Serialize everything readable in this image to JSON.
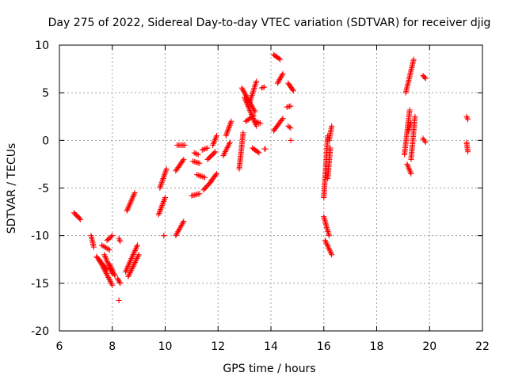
{
  "chart_data": {
    "type": "scatter",
    "title": "Day 275 of 2022, Sidereal Day-to-day VTEC variation (SDTVAR) for receiver djig",
    "xlabel": "GPS time / hours",
    "ylabel": "SDTVAR / TECUs",
    "xlim": [
      6,
      22
    ],
    "ylim": [
      -20,
      10
    ],
    "xticks": [
      "6",
      "8",
      "10",
      "12",
      "14",
      "16",
      "18",
      "20",
      "22"
    ],
    "yticks": [
      "-20",
      "-15",
      "-10",
      "-5",
      "0",
      "5",
      "10"
    ],
    "grid": true,
    "marker": "plus",
    "color": "#ff0000",
    "segments": [
      {
        "x": [
          6.55,
          6.8
        ],
        "y": [
          -7.6,
          -8.3
        ]
      },
      {
        "x": [
          7.2,
          7.3
        ],
        "y": [
          -10.0,
          -11.2
        ]
      },
      {
        "x": [
          7.4,
          7.8
        ],
        "y": [
          -12.2,
          -13.6
        ]
      },
      {
        "x": [
          7.5,
          8.0
        ],
        "y": [
          -12.5,
          -15.2
        ]
      },
      {
        "x": [
          7.6,
          7.9
        ],
        "y": [
          -11.0,
          -11.5
        ]
      },
      {
        "x": [
          7.7,
          8.0
        ],
        "y": [
          -12.0,
          -14.0
        ]
      },
      {
        "x": [
          7.8,
          8.0
        ],
        "y": [
          -10.5,
          -10.0
        ]
      },
      {
        "x": [
          7.9,
          8.1
        ],
        "y": [
          -13.0,
          -14.2
        ]
      },
      {
        "x": [
          8.25,
          8.3
        ],
        "y": [
          -10.3,
          -10.6
        ]
      },
      {
        "x": [
          8.2,
          8.3
        ],
        "y": [
          -14.5,
          -15.0
        ]
      },
      {
        "x": [
          8.25,
          8.25
        ],
        "y": [
          -16.8,
          -16.8
        ]
      },
      {
        "x": [
          8.5,
          8.95
        ],
        "y": [
          -13.8,
          -11.0
        ]
      },
      {
        "x": [
          8.6,
          9.0
        ],
        "y": [
          -14.3,
          -12.0
        ]
      },
      {
        "x": [
          8.55,
          8.85
        ],
        "y": [
          -7.4,
          -5.5
        ]
      },
      {
        "x": [
          9.75,
          10.0
        ],
        "y": [
          -7.8,
          -6.0
        ]
      },
      {
        "x": [
          9.8,
          10.05
        ],
        "y": [
          -5.0,
          -3.0
        ]
      },
      {
        "x": [
          9.95,
          9.95
        ],
        "y": [
          -10.0,
          -10.0
        ]
      },
      {
        "x": [
          10.4,
          10.7
        ],
        "y": [
          -10.0,
          -8.5
        ]
      },
      {
        "x": [
          10.4,
          10.7
        ],
        "y": [
          -3.2,
          -2.0
        ]
      },
      {
        "x": [
          10.45,
          10.75
        ],
        "y": [
          -0.5,
          -0.5
        ]
      },
      {
        "x": [
          11.0,
          11.3
        ],
        "y": [
          -5.8,
          -5.6
        ]
      },
      {
        "x": [
          11.1,
          11.25
        ],
        "y": [
          -1.3,
          -1.5
        ]
      },
      {
        "x": [
          11.05,
          11.3
        ],
        "y": [
          -2.2,
          -2.4
        ]
      },
      {
        "x": [
          11.2,
          11.5
        ],
        "y": [
          -3.6,
          -3.9
        ]
      },
      {
        "x": [
          11.45,
          11.75
        ],
        "y": [
          -5.2,
          -4.3
        ]
      },
      {
        "x": [
          11.4,
          11.6
        ],
        "y": [
          -1.0,
          -0.8
        ]
      },
      {
        "x": [
          11.6,
          11.9
        ],
        "y": [
          -2.0,
          -1.2
        ]
      },
      {
        "x": [
          11.75,
          11.95
        ],
        "y": [
          -4.2,
          -3.5
        ]
      },
      {
        "x": [
          11.8,
          11.95
        ],
        "y": [
          -0.5,
          0.5
        ]
      },
      {
        "x": [
          12.2,
          12.45
        ],
        "y": [
          -1.6,
          -0.2
        ]
      },
      {
        "x": [
          12.3,
          12.5
        ],
        "y": [
          0.5,
          2.0
        ]
      },
      {
        "x": [
          12.8,
          12.95
        ],
        "y": [
          -3.0,
          0.8
        ]
      },
      {
        "x": [
          12.9,
          13.4
        ],
        "y": [
          5.5,
          3.0
        ]
      },
      {
        "x": [
          13.0,
          13.45
        ],
        "y": [
          4.5,
          1.5
        ]
      },
      {
        "x": [
          13.05,
          13.35
        ],
        "y": [
          2.0,
          2.6
        ]
      },
      {
        "x": [
          13.2,
          13.45
        ],
        "y": [
          4.0,
          6.2
        ]
      },
      {
        "x": [
          13.3,
          13.55
        ],
        "y": [
          -0.8,
          -1.3
        ]
      },
      {
        "x": [
          13.4,
          13.6
        ],
        "y": [
          2.0,
          1.8
        ]
      },
      {
        "x": [
          13.75,
          13.8
        ],
        "y": [
          -0.9,
          -0.9
        ]
      },
      {
        "x": [
          13.65,
          13.75
        ],
        "y": [
          5.5,
          5.6
        ]
      },
      {
        "x": [
          14.1,
          14.35
        ],
        "y": [
          9.0,
          8.5
        ]
      },
      {
        "x": [
          14.25,
          14.45
        ],
        "y": [
          6.0,
          7.0
        ]
      },
      {
        "x": [
          14.1,
          14.45
        ],
        "y": [
          1.0,
          2.3
        ]
      },
      {
        "x": [
          14.65,
          14.85
        ],
        "y": [
          6.0,
          5.2
        ]
      },
      {
        "x": [
          14.6,
          14.75
        ],
        "y": [
          3.5,
          3.6
        ]
      },
      {
        "x": [
          14.65,
          14.75
        ],
        "y": [
          1.5,
          1.3
        ]
      },
      {
        "x": [
          14.75,
          14.75
        ],
        "y": [
          0.0,
          0.0
        ]
      },
      {
        "x": [
          16.0,
          16.15
        ],
        "y": [
          -6.0,
          0.5
        ]
      },
      {
        "x": [
          16.0,
          16.2
        ],
        "y": [
          -8.0,
          -10.0
        ]
      },
      {
        "x": [
          16.05,
          16.3
        ],
        "y": [
          -10.5,
          -12.0
        ]
      },
      {
        "x": [
          16.15,
          16.25
        ],
        "y": [
          -4.0,
          -0.8
        ]
      },
      {
        "x": [
          16.2,
          16.3
        ],
        "y": [
          0.0,
          1.5
        ]
      },
      {
        "x": [
          19.05,
          19.25
        ],
        "y": [
          -1.5,
          3.2
        ]
      },
      {
        "x": [
          19.1,
          19.4
        ],
        "y": [
          5.0,
          8.5
        ]
      },
      {
        "x": [
          19.15,
          19.3
        ],
        "y": [
          -2.5,
          -3.5
        ]
      },
      {
        "x": [
          19.3,
          19.45
        ],
        "y": [
          -2.0,
          2.5
        ]
      },
      {
        "x": [
          19.2,
          19.3
        ],
        "y": [
          1.0,
          1.9
        ]
      },
      {
        "x": [
          19.75,
          19.85
        ],
        "y": [
          6.8,
          6.5
        ]
      },
      {
        "x": [
          19.75,
          19.85
        ],
        "y": [
          0.2,
          -0.2
        ]
      },
      {
        "x": [
          21.4,
          21.45
        ],
        "y": [
          2.5,
          2.2
        ]
      },
      {
        "x": [
          21.4,
          21.45
        ],
        "y": [
          -0.2,
          -1.2
        ]
      }
    ]
  }
}
